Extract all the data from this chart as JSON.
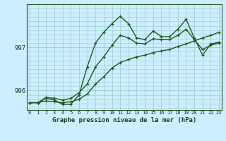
{
  "title": "Graphe pression niveau de la mer (hPa)",
  "background_color": "#cceeff",
  "grid_color": "#99cccc",
  "line_color": "#1a5c1a",
  "x_labels": [
    "0",
    "1",
    "2",
    "3",
    "4",
    "5",
    "6",
    "7",
    "8",
    "9",
    "10",
    "11",
    "12",
    "13",
    "14",
    "15",
    "16",
    "17",
    "18",
    "19",
    "20",
    "21",
    "22",
    "23"
  ],
  "ytick_labels": [
    "996",
    "997"
  ],
  "ytick_values": [
    996,
    997
  ],
  "ylim": [
    995.55,
    998.0
  ],
  "xlim": [
    -0.3,
    23.3
  ],
  "line1": [
    995.72,
    995.72,
    995.82,
    995.78,
    995.68,
    995.68,
    995.9,
    996.55,
    997.1,
    997.35,
    997.55,
    997.72,
    997.55,
    997.22,
    997.18,
    997.38,
    997.25,
    997.25,
    997.42,
    997.65,
    997.22,
    996.82,
    997.08,
    997.12
  ],
  "line2": [
    995.72,
    995.72,
    995.84,
    995.82,
    995.78,
    995.82,
    995.95,
    996.15,
    996.55,
    996.78,
    997.05,
    997.28,
    997.22,
    997.1,
    997.08,
    997.2,
    997.18,
    997.18,
    997.28,
    997.42,
    997.18,
    996.95,
    997.05,
    997.1
  ],
  "line3": [
    995.72,
    995.72,
    995.76,
    995.74,
    995.72,
    995.74,
    995.8,
    995.92,
    996.15,
    996.32,
    996.52,
    996.65,
    996.72,
    996.78,
    996.82,
    996.88,
    996.92,
    996.95,
    997.02,
    997.08,
    997.15,
    997.22,
    997.28,
    997.35
  ]
}
